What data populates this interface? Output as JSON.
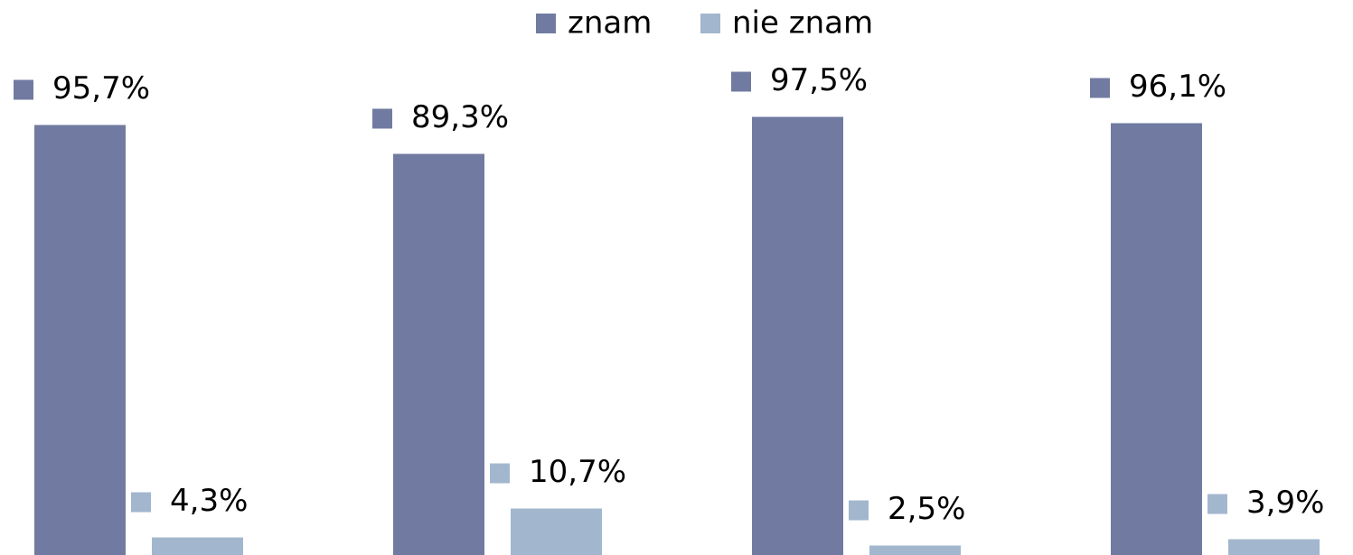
{
  "chart_data": {
    "type": "bar",
    "categories": [
      null,
      null,
      null,
      null
    ],
    "series": [
      {
        "name": "znam",
        "color": "#717ba2",
        "values": [
          95.7,
          89.3,
          97.5,
          96.1
        ],
        "value_labels": [
          "95,7%",
          "89,3%",
          "97,5%",
          "96,1%"
        ]
      },
      {
        "name": "nie znam",
        "color": "#a2b7ce",
        "values": [
          4.3,
          10.7,
          2.5,
          3.9
        ],
        "value_labels": [
          "4,3%",
          "10,7%",
          "2,5%",
          "3,9%"
        ]
      }
    ],
    "ylim": [
      0,
      100
    ]
  }
}
